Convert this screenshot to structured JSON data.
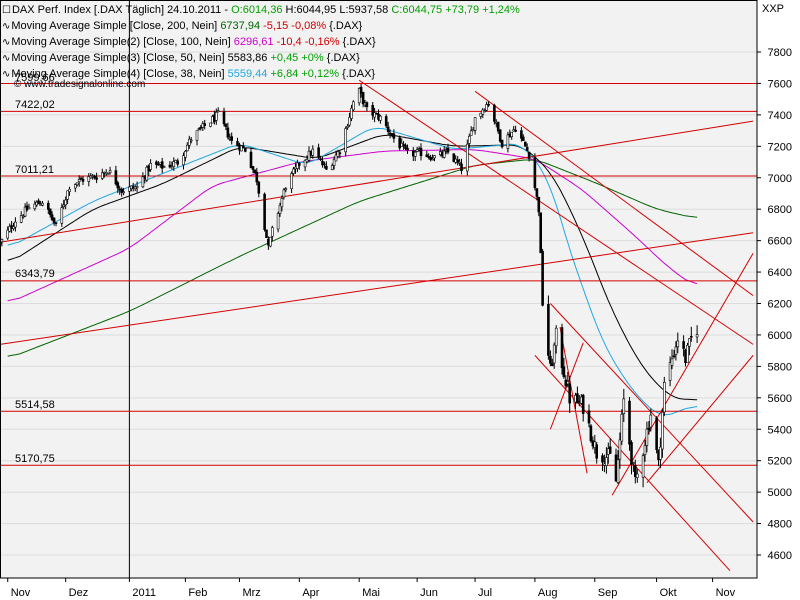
{
  "legend": {
    "main": {
      "name": "DAX Perf. Index [.DAX  Täglich]",
      "date": "24.10.2011",
      "open": "O:6014,36",
      "high": "H:6044,95",
      "low": "L:5937,58",
      "close": "C:6044,75",
      "change": "+73,79",
      "pct": "+1,24%"
    },
    "ma200": {
      "name": "Moving Average Simple [Close, 200, Nein]",
      "value": "6737,94",
      "change": "-5,15",
      "pct": "-0,08%",
      "ref": "{.DAX}",
      "color": "#006400"
    },
    "ma100": {
      "name": "Moving Average Simple(2) [Close, 100, Nein]",
      "value": "6296,61",
      "change": "-10,4",
      "pct": "-0,16%",
      "ref": "{.DAX}",
      "color": "#cc00cc"
    },
    "ma50": {
      "name": "Moving Average Simple(3) [Close, 50, Nein]",
      "value": "5583,86",
      "change": "+0,45",
      "pct": "+0%",
      "ref": "{.DAX}",
      "color": "#000000"
    },
    "ma38": {
      "name": "Moving Average Simple(4) [Close, 38, Nein]",
      "value": "5559,44",
      "change": "+6,84",
      "pct": "+0,12%",
      "ref": "{.DAX}",
      "color": "#1fa8e0"
    }
  },
  "watermark": "© www.tradesignalonline.com",
  "xxp": "XXP",
  "chart_data": {
    "type": "candlestick",
    "ylim": [
      4440,
      7960
    ],
    "y_ticks": [
      4600,
      4800,
      5000,
      5200,
      5400,
      5600,
      5800,
      6000,
      6200,
      6400,
      6600,
      6800,
      7000,
      7200,
      7400,
      7600,
      7800
    ],
    "x_labels": [
      {
        "label": "Nov",
        "date": "2010-11-01"
      },
      {
        "label": "Dez",
        "date": "2010-12-01"
      },
      {
        "label": "2011",
        "date": "2011-01-03"
      },
      {
        "label": "Feb",
        "date": "2011-02-01"
      },
      {
        "label": "Mrz",
        "date": "2011-03-01"
      },
      {
        "label": "Apr",
        "date": "2011-04-01"
      },
      {
        "label": "Mai",
        "date": "2011-05-02"
      },
      {
        "label": "Jun",
        "date": "2011-06-01"
      },
      {
        "label": "Jul",
        "date": "2011-07-01"
      },
      {
        "label": "Aug",
        "date": "2011-08-01"
      },
      {
        "label": "Sep",
        "date": "2011-09-01"
      },
      {
        "label": "Okt",
        "date": "2011-10-03"
      },
      {
        "label": "Nov",
        "date": "2011-11-01"
      }
    ],
    "horizontal_levels": [
      {
        "label": "7599,66",
        "value": 7599.66
      },
      {
        "label": "7422,02",
        "value": 7422.02
      },
      {
        "label": "7011,21",
        "value": 7011.21
      },
      {
        "label": "6343,79",
        "value": 6343.79
      },
      {
        "label": "5514,58",
        "value": 5514.58
      },
      {
        "label": "5170,75",
        "value": 5170.75
      }
    ],
    "close_path": [
      [
        "2010-10-28",
        6580
      ],
      [
        "2010-11-05",
        6730
      ],
      [
        "2010-11-12",
        6810
      ],
      [
        "2010-11-19",
        6850
      ],
      [
        "2010-11-26",
        6690
      ],
      [
        "2010-12-03",
        6950
      ],
      [
        "2010-12-10",
        6990
      ],
      [
        "2010-12-17",
        7010
      ],
      [
        "2010-12-23",
        7050
      ],
      [
        "2010-12-30",
        6920
      ],
      [
        "2011-01-07",
        6940
      ],
      [
        "2011-01-14",
        7080
      ],
      [
        "2011-01-21",
        7070
      ],
      [
        "2011-01-28",
        7100
      ],
      [
        "2011-02-04",
        7250
      ],
      [
        "2011-02-11",
        7330
      ],
      [
        "2011-02-18",
        7400
      ],
      [
        "2011-02-25",
        7230
      ],
      [
        "2011-03-04",
        7180
      ],
      [
        "2011-03-10",
        6990
      ],
      [
        "2011-03-16",
        6550
      ],
      [
        "2011-03-18",
        6660
      ],
      [
        "2011-03-25",
        6950
      ],
      [
        "2011-04-01",
        7090
      ],
      [
        "2011-04-08",
        7170
      ],
      [
        "2011-04-15",
        7050
      ],
      [
        "2011-04-22",
        7180
      ],
      [
        "2011-04-29",
        7480
      ],
      [
        "2011-05-02",
        7550
      ],
      [
        "2011-05-06",
        7430
      ],
      [
        "2011-05-13",
        7380
      ],
      [
        "2011-05-20",
        7250
      ],
      [
        "2011-05-27",
        7150
      ],
      [
        "2011-06-03",
        7160
      ],
      [
        "2011-06-10",
        7130
      ],
      [
        "2011-06-17",
        7160
      ],
      [
        "2011-06-24",
        7060
      ],
      [
        "2011-07-01",
        7380
      ],
      [
        "2011-07-08",
        7480
      ],
      [
        "2011-07-15",
        7220
      ],
      [
        "2011-07-22",
        7320
      ],
      [
        "2011-07-29",
        7150
      ],
      [
        "2011-08-03",
        6800
      ],
      [
        "2011-08-05",
        6200
      ],
      [
        "2011-08-09",
        5770
      ],
      [
        "2011-08-12",
        5990
      ],
      [
        "2011-08-19",
        5600
      ],
      [
        "2011-08-26",
        5550
      ],
      [
        "2011-09-02",
        5250
      ],
      [
        "2011-09-09",
        5220
      ],
      [
        "2011-09-12",
        5070
      ],
      [
        "2011-09-16",
        5580
      ],
      [
        "2011-09-22",
        5050
      ],
      [
        "2011-09-30",
        5500
      ],
      [
        "2011-10-04",
        5170
      ],
      [
        "2011-10-07",
        5680
      ],
      [
        "2011-10-14",
        5980
      ],
      [
        "2011-10-18",
        5850
      ],
      [
        "2011-10-21",
        5970
      ],
      [
        "2011-10-24",
        6044.75
      ]
    ],
    "series": [
      {
        "name": "Moving Average Simple [Close, 200, Nein]",
        "color": "#006400",
        "points": [
          [
            "2010-11-01",
            5850
          ],
          [
            "2011-01-03",
            6150
          ],
          [
            "2011-03-01",
            6500
          ],
          [
            "2011-05-02",
            6850
          ],
          [
            "2011-07-01",
            7080
          ],
          [
            "2011-08-01",
            7120
          ],
          [
            "2011-09-01",
            6970
          ],
          [
            "2011-10-03",
            6800
          ],
          [
            "2011-10-24",
            6740
          ]
        ]
      },
      {
        "name": "Moving Average Simple(2) [Close, 100, Nein]",
        "color": "#cc00cc",
        "points": [
          [
            "2010-11-01",
            6200
          ],
          [
            "2011-01-03",
            6550
          ],
          [
            "2011-02-15",
            6950
          ],
          [
            "2011-04-01",
            7100
          ],
          [
            "2011-05-15",
            7170
          ],
          [
            "2011-07-01",
            7180
          ],
          [
            "2011-08-01",
            7120
          ],
          [
            "2011-08-25",
            6930
          ],
          [
            "2011-09-20",
            6650
          ],
          [
            "2011-10-10",
            6420
          ],
          [
            "2011-10-24",
            6300
          ]
        ]
      },
      {
        "name": "Moving Average Simple(3) [Close, 50, Nein]",
        "color": "#000000",
        "points": [
          [
            "2010-11-01",
            6450
          ],
          [
            "2010-12-15",
            6800
          ],
          [
            "2011-01-20",
            6960
          ],
          [
            "2011-03-01",
            7200
          ],
          [
            "2011-04-10",
            7120
          ],
          [
            "2011-05-15",
            7280
          ],
          [
            "2011-06-20",
            7200
          ],
          [
            "2011-07-25",
            7210
          ],
          [
            "2011-08-10",
            7030
          ],
          [
            "2011-08-25",
            6650
          ],
          [
            "2011-09-10",
            6150
          ],
          [
            "2011-09-25",
            5800
          ],
          [
            "2011-10-10",
            5600
          ],
          [
            "2011-10-24",
            5584
          ]
        ]
      },
      {
        "name": "Moving Average Simple(4) [Close, 38, Nein]",
        "color": "#1fa8e0",
        "points": [
          [
            "2010-11-01",
            6550
          ],
          [
            "2010-12-15",
            6850
          ],
          [
            "2011-01-25",
            7050
          ],
          [
            "2011-03-01",
            7220
          ],
          [
            "2011-04-05",
            7080
          ],
          [
            "2011-05-10",
            7330
          ],
          [
            "2011-06-20",
            7180
          ],
          [
            "2011-07-25",
            7220
          ],
          [
            "2011-08-08",
            7000
          ],
          [
            "2011-08-20",
            6500
          ],
          [
            "2011-09-05",
            5950
          ],
          [
            "2011-09-20",
            5650
          ],
          [
            "2011-10-05",
            5470
          ],
          [
            "2011-10-24",
            5560
          ]
        ]
      }
    ],
    "trendlines": [
      {
        "from": [
          "2010-10-28",
          5940
        ],
        "to": [
          "2011-11-22",
          6650
        ]
      },
      {
        "from": [
          "2010-10-28",
          6590
        ],
        "to": [
          "2011-11-22",
          7360
        ]
      },
      {
        "from": [
          "2011-05-02",
          7620
        ],
        "to": [
          "2011-11-22",
          5940
        ]
      },
      {
        "from": [
          "2011-07-01",
          7550
        ],
        "to": [
          "2011-11-22",
          6250
        ]
      },
      {
        "from": [
          "2011-08-09",
          6200
        ],
        "to": [
          "2011-11-22",
          4810
        ]
      },
      {
        "from": [
          "2011-08-01",
          5870
        ],
        "to": [
          "2011-11-10",
          4500
        ]
      },
      {
        "from": [
          "2011-09-10",
          4980
        ],
        "to": [
          "2011-11-22",
          6520
        ]
      },
      {
        "from": [
          "2011-09-28",
          5060
        ],
        "to": [
          "2011-11-22",
          5870
        ]
      },
      {
        "from": [
          "2011-08-14",
          6050
        ],
        "to": [
          "2011-08-28",
          5120
        ]
      },
      {
        "from": [
          "2011-08-09",
          5400
        ],
        "to": [
          "2011-08-26",
          5950
        ]
      }
    ]
  }
}
